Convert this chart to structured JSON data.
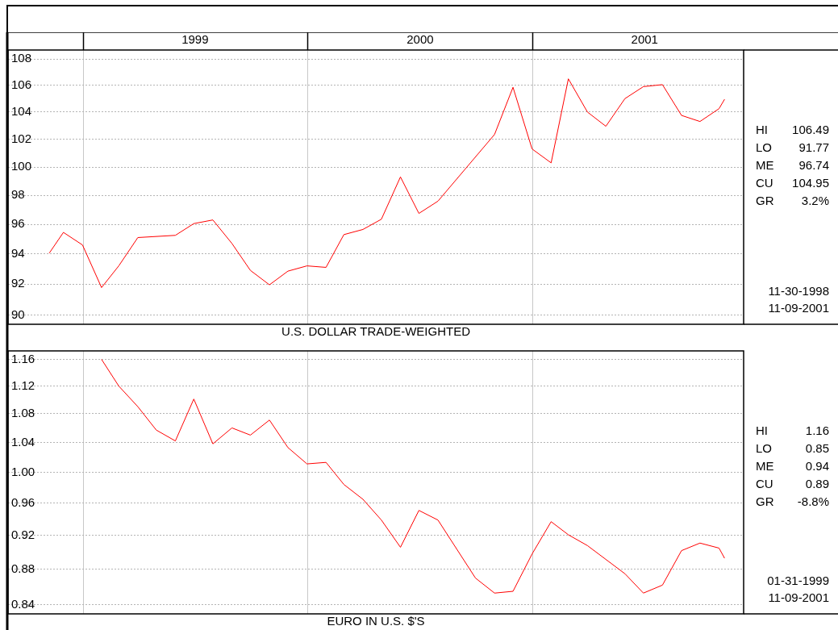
{
  "chart_data": [
    {
      "type": "line",
      "title": "U.S. DOLLAR TRADE-WEIGHTED",
      "log": true,
      "grid": true,
      "xlim": [
        "1998-09-01",
        "2001-12-10"
      ],
      "xticks": [
        {
          "value": "1999-01-01",
          "label": null
        },
        {
          "value": "1999-07-02",
          "label": "1999"
        },
        {
          "value": "2000-01-01",
          "label": null
        },
        {
          "value": "2000-07-02",
          "label": "2000"
        },
        {
          "value": "2001-01-01",
          "label": null
        },
        {
          "value": "2001-07-02",
          "label": "2001"
        }
      ],
      "ylim": [
        89.4,
        108.7
      ],
      "yticks": [
        90,
        92,
        94,
        96,
        98,
        100,
        102,
        104,
        106,
        108
      ],
      "series": [
        {
          "color": "#ff0000",
          "x": [
            "1998-11-07",
            "1998-11-30",
            "1998-12-31",
            "1999-01-31",
            "1999-02-28",
            "1999-03-31",
            "1999-05-31",
            "1999-06-30",
            "1999-07-31",
            "1999-08-31",
            "1999-09-30",
            "1999-10-31",
            "1999-11-30",
            "1999-12-31",
            "2000-01-31",
            "2000-02-29",
            "2000-03-31",
            "2000-04-30",
            "2000-05-31",
            "2000-06-30",
            "2000-07-31",
            "2000-10-31",
            "2000-11-30",
            "2000-12-31",
            "2001-01-31",
            "2001-02-28",
            "2001-03-31",
            "2001-04-30",
            "2001-05-31",
            "2001-06-30",
            "2001-07-31",
            "2001-08-31",
            "2001-09-30",
            "2001-10-31",
            "2001-11-09"
          ],
          "values": [
            94.05,
            95.45,
            94.6,
            91.77,
            93.2,
            95.1,
            95.25,
            96.05,
            96.3,
            94.7,
            92.9,
            91.95,
            92.85,
            93.2,
            93.1,
            95.3,
            95.65,
            96.35,
            99.3,
            96.75,
            97.6,
            102.35,
            105.85,
            101.3,
            100.3,
            106.49,
            104.0,
            102.95,
            105.0,
            105.9,
            106.05,
            103.75,
            103.3,
            104.25,
            104.95
          ]
        }
      ],
      "annotations": [
        "HI 106.49",
        "LO 91.77",
        "ME 96.74",
        "CU 104.95",
        "GR 3.2%",
        "11-30-1998",
        "11-09-2001"
      ]
    },
    {
      "type": "line",
      "title": "EURO IN U.S. $'S",
      "log": true,
      "grid": true,
      "tick_labels": "y",
      "xlim": [
        "1998-09-01",
        "2001-12-10"
      ],
      "xticks": [
        {
          "value": "1999-01-01",
          "label": null
        },
        {
          "value": "2000-01-01",
          "label": null
        },
        {
          "value": "2001-01-01",
          "label": null
        }
      ],
      "ylim": [
        0.83,
        1.173
      ],
      "yticks": [
        0.84,
        0.88,
        0.92,
        0.96,
        {
          "value": 1,
          "label": "1.00"
        },
        1.04,
        1.08,
        1.12,
        1.16
      ],
      "series": [
        {
          "color": "#ff0000",
          "x": [
            "1999-01-31",
            "1999-02-28",
            "1999-03-31",
            "1999-04-30",
            "1999-05-31",
            "1999-06-30",
            "1999-07-31",
            "1999-08-31",
            "1999-09-30",
            "1999-10-31",
            "1999-11-30",
            "1999-12-31",
            "2000-01-31",
            "2000-02-29",
            "2000-03-31",
            "2000-04-30",
            "2000-05-31",
            "2000-06-30",
            "2000-07-31",
            "2000-09-30",
            "2000-10-31",
            "2000-11-30",
            "2000-12-31",
            "2001-01-31",
            "2001-02-28",
            "2001-03-31",
            "2001-05-31",
            "2001-06-30",
            "2001-07-31",
            "2001-08-31",
            "2001-09-30",
            "2001-10-31",
            "2001-11-09"
          ],
          "values": [
            1.16,
            1.12,
            1.09,
            1.057,
            1.042,
            1.101,
            1.038,
            1.06,
            1.05,
            1.071,
            1.033,
            1.011,
            1.013,
            0.984,
            0.965,
            0.939,
            0.906,
            0.951,
            0.939,
            0.87,
            0.853,
            0.855,
            0.898,
            0.937,
            0.921,
            0.908,
            0.875,
            0.853,
            0.862,
            0.902,
            0.911,
            0.905,
            0.893
          ]
        }
      ],
      "annotations": [
        "HI 1.16",
        "LO 0.85",
        "ME 0.94",
        "CU 0.89",
        "GR -8.8%",
        "01-31-1999",
        "11-09-2001"
      ]
    }
  ]
}
